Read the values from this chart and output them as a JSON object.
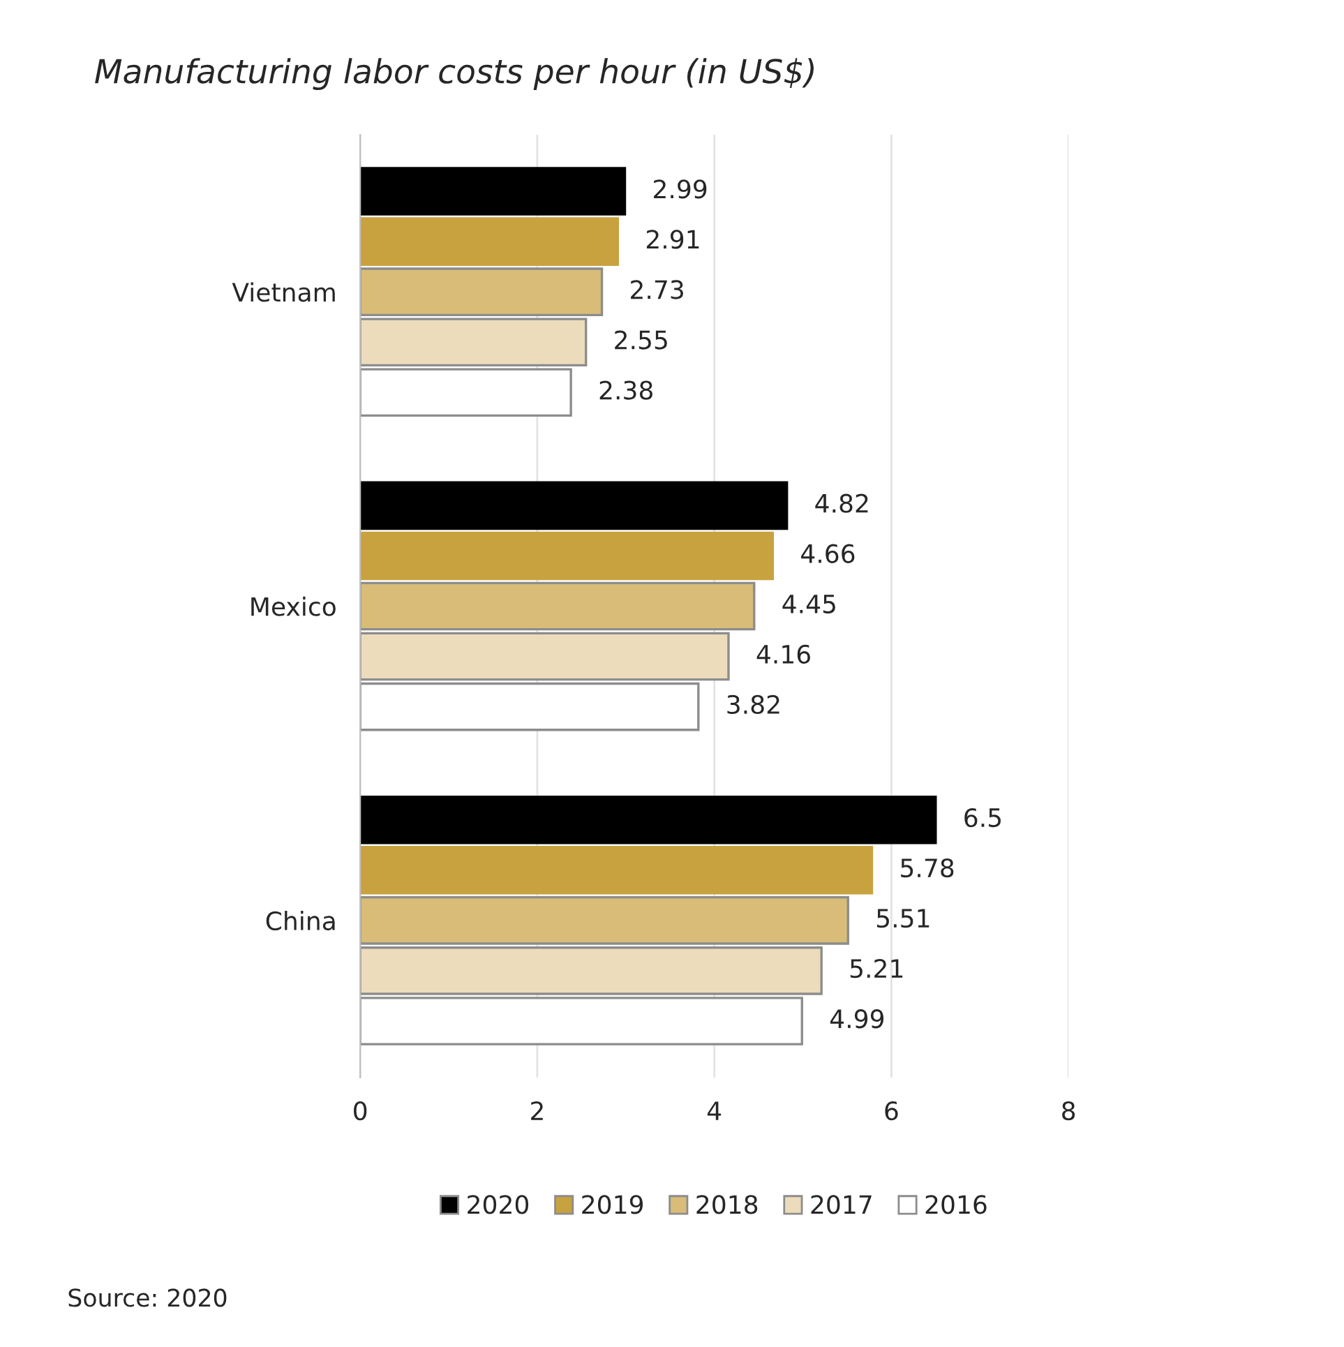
{
  "chart_data": {
    "type": "bar",
    "orientation": "horizontal",
    "title": "Manufacturing labor costs per hour (in US$)",
    "categories": [
      "Vietnam",
      "Mexico",
      "China"
    ],
    "series": [
      {
        "name": "2020",
        "color": "#000000",
        "values": [
          2.99,
          4.82,
          6.5
        ]
      },
      {
        "name": "2019",
        "color": "#c9a240",
        "values": [
          2.91,
          4.66,
          5.78
        ]
      },
      {
        "name": "2018",
        "color": "#d8bc78",
        "values": [
          2.73,
          4.45,
          5.51
        ]
      },
      {
        "name": "2017",
        "color": "#ecdcbc",
        "values": [
          2.55,
          4.16,
          5.21
        ]
      },
      {
        "name": "2016",
        "color": "#ffffff",
        "values": [
          2.38,
          3.82,
          4.99
        ]
      }
    ],
    "xlim": [
      0,
      8
    ],
    "xticks": [
      0,
      2,
      4,
      6,
      8
    ],
    "grid": "x",
    "legend": "bottom",
    "data_labels": true,
    "annotations": [
      "Source: 2020"
    ]
  }
}
